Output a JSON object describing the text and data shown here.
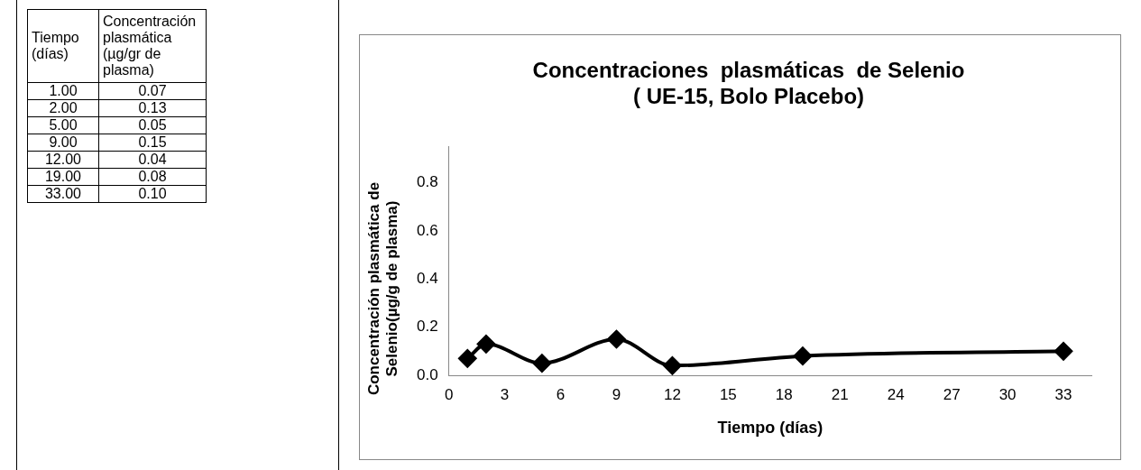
{
  "chart_data": [
    {
      "type": "other",
      "annotations": [
        "Tiempo (días)",
        "Concentración plasmática (µg/gr de plasma)",
        "1.00",
        "0.07",
        "2.00",
        "0.13",
        "5.00",
        "0.05",
        "9.00",
        "0.15",
        "12.00",
        "0.04",
        "19.00",
        "0.08",
        "33.00",
        "0.10"
      ]
    },
    {
      "type": "line",
      "title": "Concentraciones  plasmáticas  de Selenio",
      "subtitle": "( UE-15, Bolo Placebo)",
      "xlabel": "Tiempo (días)",
      "ylabel": "Concentración plasmática de Selenio(µg/g de plasma)",
      "x": [
        1,
        2,
        5,
        9,
        12,
        19,
        33
      ],
      "series": [
        {
          "color": "#000000",
          "values": [
            0.07,
            0.13,
            0.05,
            0.15,
            0.04,
            0.08,
            0.1
          ]
        }
      ],
      "xlim": [
        0,
        34.5
      ],
      "xticks": [
        0,
        3,
        6,
        9,
        12,
        15,
        18,
        21,
        24,
        27,
        30,
        33
      ],
      "ylim": [
        0,
        0.95
      ],
      "yticks": [
        {
          "value": 0,
          "label": "0.0"
        },
        {
          "value": 0.2,
          "label": "0.2"
        },
        {
          "value": 0.4,
          "label": "0.4"
        },
        {
          "value": 0.6,
          "label": "0.6"
        },
        {
          "value": 0.8,
          "label": "0.8"
        }
      ],
      "grid": false,
      "legend": false,
      "marker": "diamond",
      "line_style": "solid"
    }
  ]
}
